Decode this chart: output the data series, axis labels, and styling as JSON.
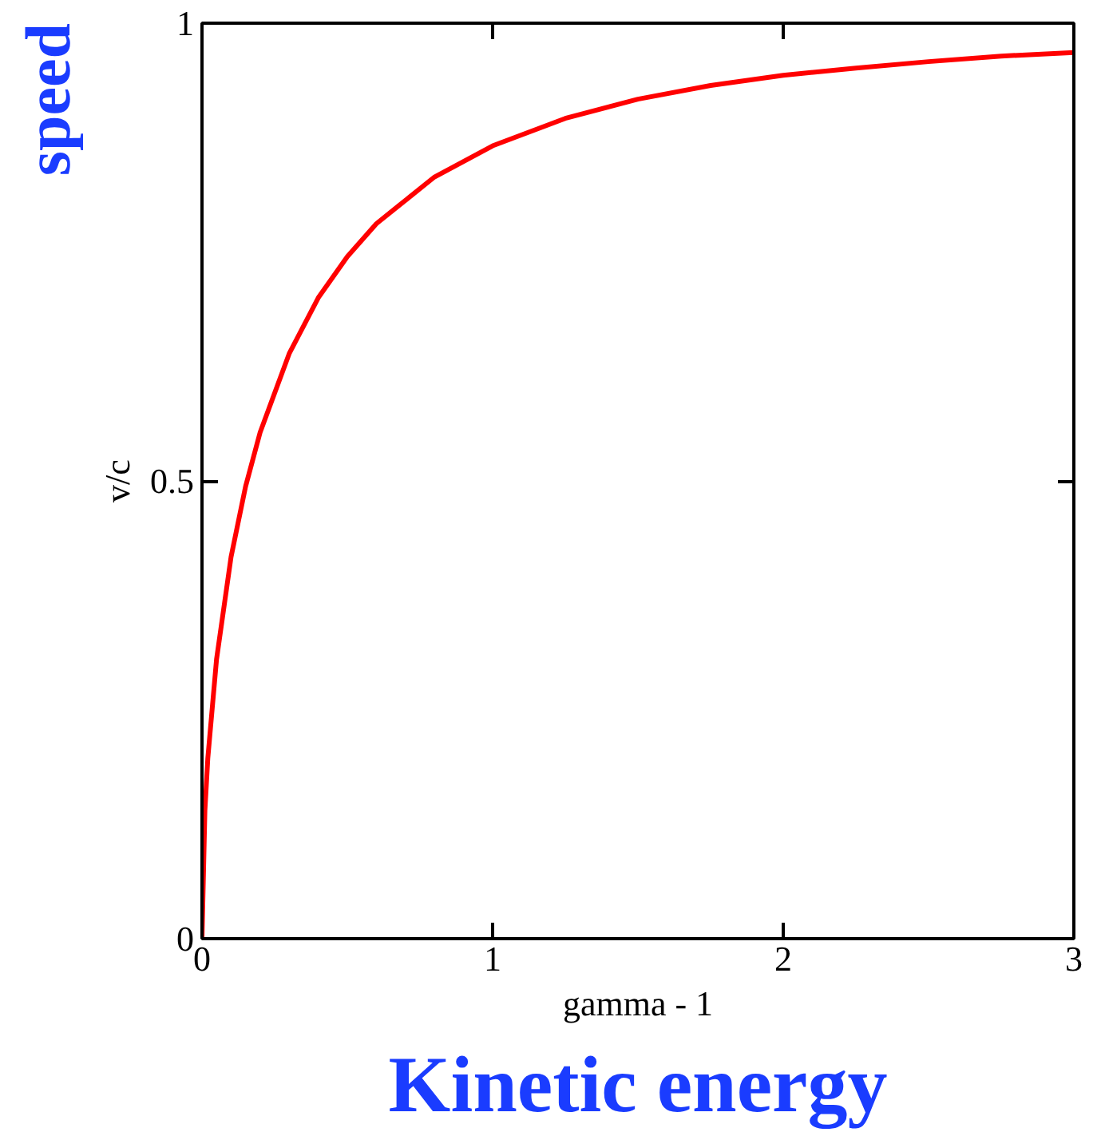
{
  "chart_data": {
    "type": "line",
    "xlabel": "gamma - 1",
    "ylabel": "v/c",
    "annotations": [
      "speed",
      "Kinetic energy"
    ],
    "x": [
      0,
      0.01,
      0.02,
      0.05,
      0.1,
      0.15,
      0.2,
      0.3,
      0.4,
      0.5,
      0.6,
      0.8,
      1.0,
      1.25,
      1.5,
      1.75,
      2,
      2.25,
      2.5,
      2.75,
      3
    ],
    "series": [
      {
        "color": "#ff0000",
        "values": [
          0,
          0.14,
          0.197,
          0.305,
          0.417,
          0.494,
          0.553,
          0.639,
          0.7,
          0.745,
          0.781,
          0.832,
          0.866,
          0.896,
          0.917,
          0.932,
          0.943,
          0.951,
          0.958,
          0.964,
          0.968
        ]
      }
    ],
    "xlim": [
      0,
      3
    ],
    "ylim": [
      0,
      1
    ],
    "xticks": [
      0,
      1,
      2,
      3
    ],
    "yticks": [
      0,
      0.5,
      1
    ],
    "grid": false,
    "marker": "none",
    "line_style": "solid"
  }
}
